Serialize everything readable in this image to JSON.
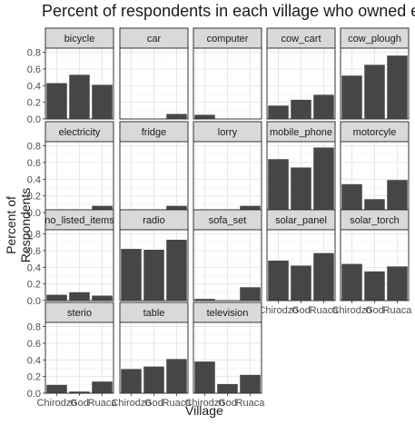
{
  "chart_data": {
    "type": "bar",
    "title": "Percent of respondents in each village who owned ea",
    "xlabel": "Village",
    "ylabel": "Percent of Respondents",
    "categories": [
      "Chirodzo",
      "God",
      "Ruaca"
    ],
    "ylim": [
      0,
      0.85
    ],
    "yticks": [
      "0.0",
      "0.2",
      "0.4",
      "0.6",
      "0.8"
    ],
    "grid": true,
    "bar_color": "#464646",
    "strip_color": "#d9d9d9",
    "panels": [
      {
        "label": "bicycle",
        "values": [
          0.43,
          0.53,
          0.41
        ]
      },
      {
        "label": "car",
        "values": [
          0.0,
          0.0,
          0.06
        ]
      },
      {
        "label": "computer",
        "values": [
          0.05,
          0.0,
          0.0
        ]
      },
      {
        "label": "cow_cart",
        "values": [
          0.16,
          0.23,
          0.29
        ]
      },
      {
        "label": "cow_plough",
        "values": [
          0.52,
          0.65,
          0.76
        ]
      },
      {
        "label": "electricity",
        "values": [
          0.03,
          0.02,
          0.08
        ]
      },
      {
        "label": "fridge",
        "values": [
          0.03,
          0.0,
          0.08
        ]
      },
      {
        "label": "lorry",
        "values": [
          0.03,
          0.0,
          0.08
        ]
      },
      {
        "label": "mobile_phone",
        "values": [
          0.64,
          0.54,
          0.78
        ]
      },
      {
        "label": "motorcyle",
        "values": [
          0.34,
          0.16,
          0.39
        ]
      },
      {
        "label": "no_listed_items",
        "values": [
          0.07,
          0.1,
          0.06
        ]
      },
      {
        "label": "radio",
        "values": [
          0.62,
          0.61,
          0.73
        ]
      },
      {
        "label": "sofa_set",
        "values": [
          0.02,
          0.0,
          0.16
        ]
      },
      {
        "label": "solar_panel",
        "values": [
          0.48,
          0.42,
          0.57
        ]
      },
      {
        "label": "solar_torch",
        "values": [
          0.44,
          0.35,
          0.41
        ]
      },
      {
        "label": "sterio",
        "values": [
          0.1,
          0.02,
          0.14
        ]
      },
      {
        "label": "table",
        "values": [
          0.29,
          0.32,
          0.41
        ]
      },
      {
        "label": "television",
        "values": [
          0.38,
          0.11,
          0.22
        ]
      }
    ]
  }
}
